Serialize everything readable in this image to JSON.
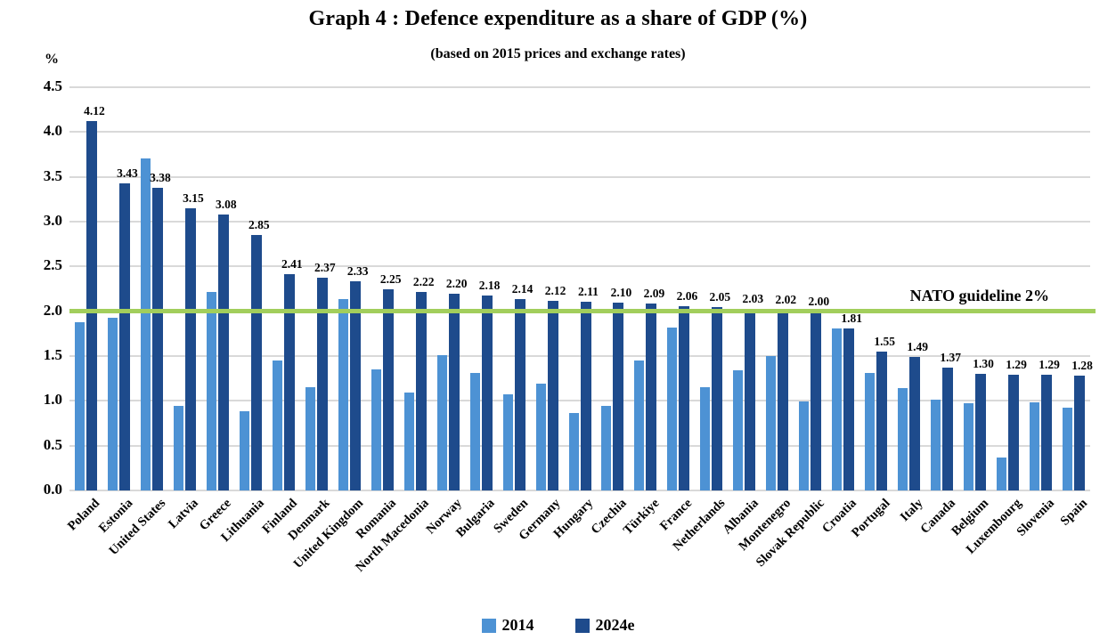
{
  "chart_data": {
    "type": "bar",
    "title": "Graph 4 : Defence expenditure as a share of GDP (%)",
    "subtitle": "(based on 2015 prices and exchange rates)",
    "ylabel": "%",
    "ylim": [
      0,
      4.5
    ],
    "ytick_step": 0.5,
    "grid": true,
    "legend_position": "bottom",
    "categories": [
      "Poland",
      "Estonia",
      "United States",
      "Latvia",
      "Greece",
      "Lithuania",
      "Finland",
      "Denmark",
      "United Kingdom",
      "Romania",
      "North Macedonia",
      "Norway",
      "Bulgaria",
      "Sweden",
      "Germany",
      "Hungary",
      "Czechia",
      "Türkiye",
      "France",
      "Netherlands",
      "Albania",
      "Montenegro",
      "Slovak Republic",
      "Croatia",
      "Portugal",
      "Italy",
      "Canada",
      "Belgium",
      "Luxembourg",
      "Slovenia",
      "Spain"
    ],
    "series": [
      {
        "name": "2014",
        "color": "#4d92d4",
        "data_labels": false,
        "values": [
          1.88,
          1.93,
          3.71,
          0.94,
          2.22,
          0.88,
          1.45,
          1.15,
          2.14,
          1.35,
          1.09,
          1.51,
          1.31,
          1.07,
          1.19,
          0.86,
          0.94,
          1.45,
          1.82,
          1.15,
          1.34,
          1.5,
          0.99,
          1.81,
          1.31,
          1.14,
          1.01,
          0.97,
          0.37,
          0.98,
          0.92
        ]
      },
      {
        "name": "2024e",
        "color": "#1e4b8c",
        "data_labels": true,
        "values": [
          4.12,
          3.43,
          3.38,
          3.15,
          3.08,
          2.85,
          2.41,
          2.37,
          2.33,
          2.25,
          2.22,
          2.2,
          2.18,
          2.14,
          2.12,
          2.11,
          2.1,
          2.09,
          2.06,
          2.05,
          2.03,
          2.02,
          2.0,
          1.81,
          1.55,
          1.49,
          1.37,
          1.3,
          1.29,
          1.29,
          1.28
        ]
      }
    ],
    "reference_line": {
      "value": 2.0,
      "label": "NATO guideline 2%",
      "color": "#a2ce5c"
    }
  },
  "colors": {
    "gridline": "#d9d9d9",
    "series_2014": "#4d92d4",
    "series_2024e": "#1e4b8c",
    "guideline_green": "#a2ce5c",
    "text": "#000000"
  }
}
